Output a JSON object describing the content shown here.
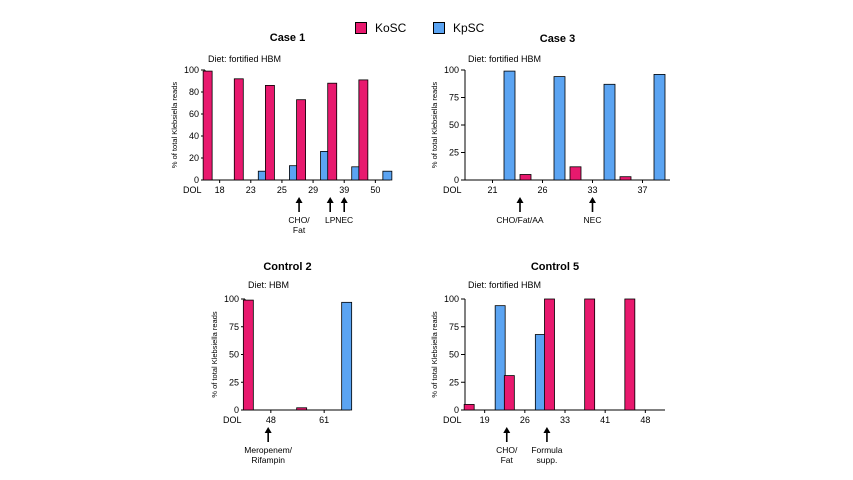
{
  "legend": {
    "items": [
      {
        "label": "KoSC",
        "color": "#E8196E"
      },
      {
        "label": "KpSC",
        "color": "#5BA4F2"
      }
    ]
  },
  "chart_data": [
    {
      "type": "bar",
      "title": "Case 1",
      "subtitle": "Diet: fortified HBM",
      "ylabel": "% of total Klebsiella reads",
      "xlabel": "DOL",
      "ylim": [
        0,
        100
      ],
      "yticks": [
        0,
        20,
        40,
        60,
        80,
        100
      ],
      "categories": [
        "18",
        "23",
        "25",
        "29",
        "39",
        "50"
      ],
      "series": [
        {
          "name": "KoSC",
          "values": [
            99,
            92,
            86,
            73,
            88,
            91
          ]
        },
        {
          "name": "KpSC",
          "values": [
            0,
            8,
            13,
            26,
            12,
            8
          ]
        }
      ],
      "annotations": [
        {
          "lines": [
            "CHO/",
            "Fat"
          ],
          "at": 2.55
        },
        {
          "lines": [
            "LP"
          ],
          "at": 3.55
        },
        {
          "lines": [
            "NEC"
          ],
          "at": 4.0
        }
      ]
    },
    {
      "type": "bar",
      "title": "Case 3",
      "subtitle": "Diet: fortified HBM",
      "ylabel": "% of total Klebsiella reads",
      "xlabel": "DOL",
      "ylim": [
        0,
        100
      ],
      "yticks": [
        0,
        25,
        50,
        75,
        100
      ],
      "categories": [
        "21",
        "26",
        "33",
        "37"
      ],
      "series": [
        {
          "name": "KoSC",
          "values": [
            0,
            5,
            12,
            3
          ]
        },
        {
          "name": "KpSC",
          "values": [
            99,
            94,
            87,
            96
          ]
        }
      ],
      "annotations": [
        {
          "lines": [
            "CHO/Fat/AA"
          ],
          "at": 0.55
        },
        {
          "lines": [
            "NEC"
          ],
          "at": 2.0
        }
      ]
    },
    {
      "type": "bar",
      "title": "Control 2",
      "subtitle": "Diet: HBM",
      "ylabel": "% of total Klebsiella reads",
      "xlabel": "DOL",
      "ylim": [
        0,
        100
      ],
      "yticks": [
        0,
        25,
        50,
        75,
        100
      ],
      "categories": [
        "48",
        "61"
      ],
      "series": [
        {
          "name": "KoSC",
          "values": [
            99,
            2
          ]
        },
        {
          "name": "KpSC",
          "values": [
            0,
            97
          ]
        }
      ],
      "annotations": [
        {
          "lines": [
            "Meropenem/",
            "Rifampin"
          ],
          "at": -0.05
        }
      ]
    },
    {
      "type": "bar",
      "title": "Control 5",
      "subtitle": "Diet: fortified HBM",
      "ylabel": "% of total Klebsiella reads",
      "xlabel": "DOL",
      "ylim": [
        0,
        100
      ],
      "yticks": [
        0,
        25,
        50,
        75,
        100
      ],
      "categories": [
        "19",
        "26",
        "33",
        "41",
        "48"
      ],
      "series": [
        {
          "name": "KoSC",
          "values": [
            5,
            31,
            100,
            100,
            100
          ]
        },
        {
          "name": "KpSC",
          "values": [
            94,
            68,
            0,
            0,
            0
          ]
        }
      ],
      "annotations": [
        {
          "lines": [
            "CHO/",
            "Fat"
          ],
          "at": 0.55
        },
        {
          "lines": [
            "Formula",
            "supp."
          ],
          "at": 1.55
        }
      ]
    }
  ]
}
